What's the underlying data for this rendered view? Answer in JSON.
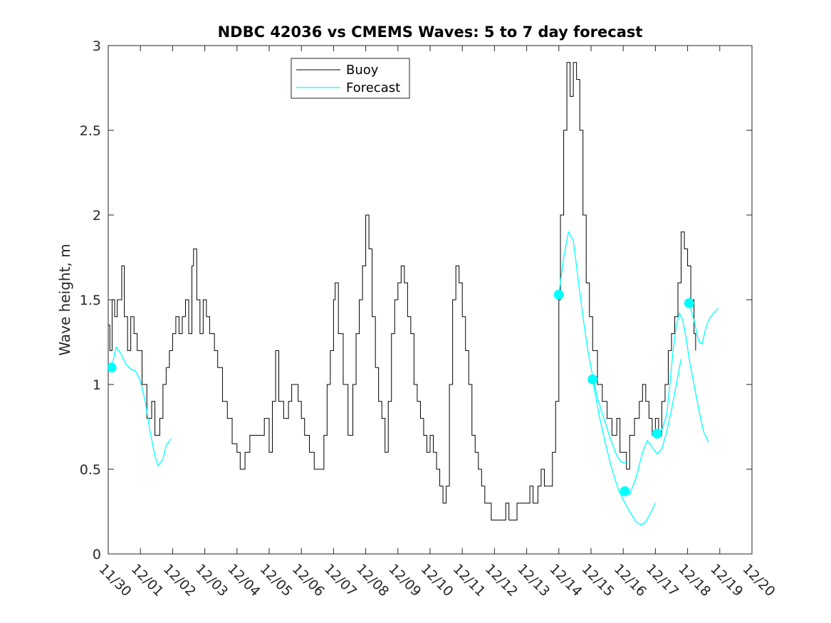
{
  "chart_data": {
    "type": "line",
    "title": "NDBC 42036 vs CMEMS Waves: 5 to 7 day forecast",
    "ylabel": "Wave height, m",
    "xlabel": "",
    "x_tick_labels": [
      "11/30",
      "12/01",
      "12/02",
      "12/03",
      "12/04",
      "12/05",
      "12/06",
      "12/07",
      "12/08",
      "12/09",
      "12/10",
      "12/11",
      "12/12",
      "12/13",
      "12/14",
      "12/15",
      "12/16",
      "12/17",
      "12/18",
      "12/19",
      "12/20"
    ],
    "y_tick_labels": [
      "0",
      "0.5",
      "1",
      "1.5",
      "2",
      "2.5",
      "3"
    ],
    "xlim_days": [
      0,
      20
    ],
    "ylim": [
      0,
      3
    ],
    "grid": false,
    "legend": {
      "position": "top-center",
      "entries": [
        "Buoy",
        "Forecast"
      ]
    },
    "series": [
      {
        "name": "Buoy",
        "color": "#000000",
        "style": "step-line",
        "points": [
          [
            0.0,
            1.35
          ],
          [
            0.05,
            1.2
          ],
          [
            0.12,
            1.5
          ],
          [
            0.2,
            1.4
          ],
          [
            0.28,
            1.5
          ],
          [
            0.35,
            1.5
          ],
          [
            0.42,
            1.7
          ],
          [
            0.5,
            1.4
          ],
          [
            0.6,
            1.2
          ],
          [
            0.7,
            1.4
          ],
          [
            0.8,
            1.3
          ],
          [
            0.9,
            1.2
          ],
          [
            1.05,
            1.0
          ],
          [
            1.2,
            0.8
          ],
          [
            1.35,
            0.9
          ],
          [
            1.45,
            0.7
          ],
          [
            1.6,
            0.8
          ],
          [
            1.7,
            1.0
          ],
          [
            1.8,
            1.1
          ],
          [
            1.9,
            1.2
          ],
          [
            2.0,
            1.3
          ],
          [
            2.1,
            1.4
          ],
          [
            2.2,
            1.3
          ],
          [
            2.3,
            1.4
          ],
          [
            2.4,
            1.5
          ],
          [
            2.5,
            1.3
          ],
          [
            2.6,
            1.7
          ],
          [
            2.65,
            1.8
          ],
          [
            2.75,
            1.5
          ],
          [
            2.85,
            1.3
          ],
          [
            2.95,
            1.5
          ],
          [
            3.05,
            1.4
          ],
          [
            3.15,
            1.3
          ],
          [
            3.3,
            1.2
          ],
          [
            3.4,
            1.1
          ],
          [
            3.55,
            0.9
          ],
          [
            3.7,
            0.8
          ],
          [
            3.85,
            0.65
          ],
          [
            4.0,
            0.6
          ],
          [
            4.1,
            0.5
          ],
          [
            4.25,
            0.6
          ],
          [
            4.4,
            0.7
          ],
          [
            4.55,
            0.7
          ],
          [
            4.7,
            0.7
          ],
          [
            4.85,
            0.8
          ],
          [
            5.0,
            0.6
          ],
          [
            5.1,
            0.9
          ],
          [
            5.2,
            1.2
          ],
          [
            5.3,
            0.9
          ],
          [
            5.45,
            0.8
          ],
          [
            5.6,
            0.9
          ],
          [
            5.7,
            1.0
          ],
          [
            5.8,
            1.0
          ],
          [
            5.9,
            0.9
          ],
          [
            6.0,
            0.8
          ],
          [
            6.1,
            0.7
          ],
          [
            6.25,
            0.6
          ],
          [
            6.4,
            0.5
          ],
          [
            6.55,
            0.5
          ],
          [
            6.7,
            0.7
          ],
          [
            6.8,
            1.0
          ],
          [
            6.9,
            1.2
          ],
          [
            7.0,
            1.5
          ],
          [
            7.05,
            1.6
          ],
          [
            7.15,
            1.3
          ],
          [
            7.3,
            1.0
          ],
          [
            7.45,
            0.7
          ],
          [
            7.6,
            1.0
          ],
          [
            7.7,
            1.3
          ],
          [
            7.8,
            1.5
          ],
          [
            7.9,
            1.7
          ],
          [
            8.0,
            2.0
          ],
          [
            8.1,
            1.8
          ],
          [
            8.2,
            1.4
          ],
          [
            8.3,
            1.1
          ],
          [
            8.4,
            0.9
          ],
          [
            8.5,
            0.8
          ],
          [
            8.6,
            0.6
          ],
          [
            8.7,
            0.9
          ],
          [
            8.8,
            1.3
          ],
          [
            8.9,
            1.5
          ],
          [
            9.0,
            1.6
          ],
          [
            9.1,
            1.7
          ],
          [
            9.2,
            1.6
          ],
          [
            9.3,
            1.4
          ],
          [
            9.4,
            1.3
          ],
          [
            9.5,
            1.0
          ],
          [
            9.6,
            0.9
          ],
          [
            9.7,
            0.8
          ],
          [
            9.8,
            0.7
          ],
          [
            9.9,
            0.6
          ],
          [
            10.0,
            0.7
          ],
          [
            10.1,
            0.6
          ],
          [
            10.2,
            0.5
          ],
          [
            10.3,
            0.4
          ],
          [
            10.4,
            0.3
          ],
          [
            10.5,
            0.4
          ],
          [
            10.6,
            1.0
          ],
          [
            10.7,
            1.5
          ],
          [
            10.8,
            1.7
          ],
          [
            10.9,
            1.6
          ],
          [
            11.0,
            1.4
          ],
          [
            11.1,
            1.2
          ],
          [
            11.2,
            1.0
          ],
          [
            11.3,
            0.7
          ],
          [
            11.4,
            0.6
          ],
          [
            11.5,
            0.5
          ],
          [
            11.6,
            0.4
          ],
          [
            11.7,
            0.3
          ],
          [
            11.8,
            0.3
          ],
          [
            11.9,
            0.2
          ],
          [
            12.0,
            0.2
          ],
          [
            12.2,
            0.2
          ],
          [
            12.35,
            0.3
          ],
          [
            12.45,
            0.2
          ],
          [
            12.6,
            0.2
          ],
          [
            12.7,
            0.3
          ],
          [
            12.8,
            0.3
          ],
          [
            13.0,
            0.3
          ],
          [
            13.1,
            0.4
          ],
          [
            13.2,
            0.3
          ],
          [
            13.35,
            0.4
          ],
          [
            13.45,
            0.5
          ],
          [
            13.55,
            0.4
          ],
          [
            13.65,
            0.4
          ],
          [
            13.8,
            0.6
          ],
          [
            13.9,
            0.9
          ],
          [
            14.0,
            1.5
          ],
          [
            14.05,
            2.0
          ],
          [
            14.15,
            2.5
          ],
          [
            14.25,
            2.9
          ],
          [
            14.35,
            2.7
          ],
          [
            14.45,
            2.9
          ],
          [
            14.55,
            2.8
          ],
          [
            14.65,
            2.5
          ],
          [
            14.75,
            2.0
          ],
          [
            14.85,
            1.6
          ],
          [
            14.95,
            1.4
          ],
          [
            15.05,
            1.2
          ],
          [
            15.2,
            1.0
          ],
          [
            15.35,
            0.9
          ],
          [
            15.5,
            0.8
          ],
          [
            15.65,
            0.7
          ],
          [
            15.8,
            0.8
          ],
          [
            15.9,
            0.6
          ],
          [
            16.0,
            0.6
          ],
          [
            16.1,
            0.5
          ],
          [
            16.2,
            0.7
          ],
          [
            16.35,
            0.8
          ],
          [
            16.5,
            0.9
          ],
          [
            16.6,
            1.0
          ],
          [
            16.7,
            0.9
          ],
          [
            16.8,
            0.8
          ],
          [
            16.9,
            0.7
          ],
          [
            17.0,
            0.8
          ],
          [
            17.1,
            0.7
          ],
          [
            17.2,
            0.9
          ],
          [
            17.3,
            1.0
          ],
          [
            17.4,
            1.2
          ],
          [
            17.5,
            1.3
          ],
          [
            17.6,
            1.4
          ],
          [
            17.7,
            1.6
          ],
          [
            17.8,
            1.9
          ],
          [
            17.9,
            1.8
          ],
          [
            18.0,
            1.7
          ],
          [
            18.1,
            1.5
          ],
          [
            18.2,
            1.3
          ],
          [
            18.25,
            1.2
          ]
        ]
      },
      {
        "name": "Forecast",
        "color": "#00FFFF",
        "style": "line",
        "segments": [
          [
            [
              0.1,
              1.1
            ],
            [
              0.25,
              1.22
            ],
            [
              0.4,
              1.18
            ],
            [
              0.55,
              1.12
            ],
            [
              0.7,
              1.09
            ],
            [
              0.85,
              1.08
            ],
            [
              1.0,
              1.02
            ],
            [
              1.15,
              0.9
            ],
            [
              1.3,
              0.72
            ],
            [
              1.45,
              0.58
            ],
            [
              1.55,
              0.52
            ],
            [
              1.7,
              0.56
            ],
            [
              1.8,
              0.64
            ],
            [
              1.95,
              0.68
            ]
          ],
          [
            [
              14.0,
              1.53
            ],
            [
              14.15,
              1.75
            ],
            [
              14.3,
              1.9
            ],
            [
              14.45,
              1.85
            ],
            [
              14.6,
              1.62
            ],
            [
              14.75,
              1.4
            ],
            [
              14.9,
              1.2
            ],
            [
              15.05,
              1.05
            ],
            [
              15.2,
              0.92
            ],
            [
              15.4,
              0.8
            ],
            [
              15.6,
              0.68
            ],
            [
              15.8,
              0.58
            ],
            [
              15.95,
              0.54
            ],
            [
              16.1,
              0.54
            ]
          ],
          [
            [
              15.05,
              1.03
            ],
            [
              15.25,
              0.82
            ],
            [
              15.45,
              0.65
            ],
            [
              15.65,
              0.5
            ],
            [
              15.85,
              0.38
            ],
            [
              16.0,
              0.32
            ],
            [
              16.2,
              0.25
            ],
            [
              16.4,
              0.19
            ],
            [
              16.55,
              0.17
            ],
            [
              16.7,
              0.19
            ],
            [
              16.85,
              0.24
            ],
            [
              17.0,
              0.3
            ]
          ],
          [
            [
              16.05,
              0.37
            ],
            [
              16.2,
              0.35
            ],
            [
              16.4,
              0.45
            ],
            [
              16.6,
              0.6
            ],
            [
              16.75,
              0.67
            ],
            [
              16.9,
              0.63
            ],
            [
              17.05,
              0.59
            ],
            [
              17.2,
              0.62
            ],
            [
              17.35,
              0.72
            ],
            [
              17.5,
              0.85
            ],
            [
              17.65,
              1.0
            ],
            [
              17.8,
              1.15
            ]
          ],
          [
            [
              17.05,
              0.71
            ],
            [
              17.2,
              0.73
            ],
            [
              17.35,
              0.82
            ],
            [
              17.45,
              1.0
            ],
            [
              17.55,
              1.2
            ],
            [
              17.65,
              1.35
            ],
            [
              17.75,
              1.42
            ],
            [
              17.85,
              1.38
            ],
            [
              17.95,
              1.28
            ],
            [
              18.05,
              1.15
            ],
            [
              18.2,
              1.0
            ],
            [
              18.35,
              0.85
            ],
            [
              18.5,
              0.72
            ],
            [
              18.65,
              0.66
            ]
          ],
          [
            [
              18.05,
              1.48
            ],
            [
              18.2,
              1.38
            ],
            [
              18.35,
              1.25
            ],
            [
              18.45,
              1.24
            ],
            [
              18.55,
              1.32
            ],
            [
              18.65,
              1.38
            ],
            [
              18.8,
              1.42
            ],
            [
              18.95,
              1.45
            ]
          ]
        ]
      }
    ],
    "markers": {
      "color": "#00FFFF",
      "points": [
        [
          0.1,
          1.1
        ],
        [
          14.0,
          1.53
        ],
        [
          15.05,
          1.03
        ],
        [
          16.05,
          0.37
        ],
        [
          17.05,
          0.71
        ],
        [
          18.05,
          1.48
        ]
      ]
    }
  }
}
